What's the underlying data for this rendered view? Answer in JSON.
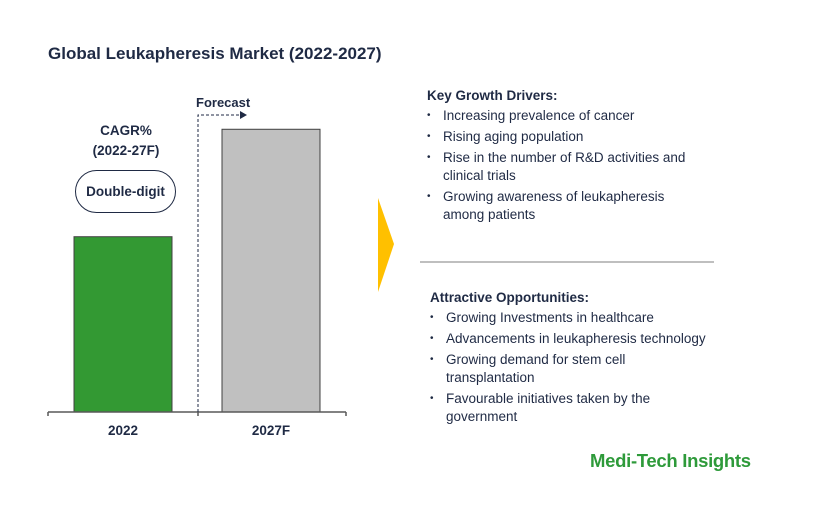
{
  "chart_data": {
    "type": "bar",
    "title": "Global Leukapheresis Market (2022-2027)",
    "categories": [
      "2022",
      "2027F"
    ],
    "values": [
      62,
      100
    ],
    "value_note": "relative index (no values labeled)",
    "colors": [
      "#339933",
      "#c0c0c0"
    ],
    "xlabel": "",
    "ylabel": "",
    "ylim": [
      0,
      110
    ],
    "annotations": {
      "forecast_label": "Forecast",
      "cagr_label_1": "CAGR%",
      "cagr_label_2": "(2022-27F)",
      "cagr_value": "Double-digit"
    }
  },
  "drivers": {
    "heading": "Key Growth Drivers:",
    "items": [
      "Increasing prevalence of cancer",
      "Rising aging population",
      "Rise in the number of R&D activities and clinical trials",
      "Growing awareness of leukapheresis among  patients"
    ]
  },
  "opportunities": {
    "heading": "Attractive Opportunities:",
    "items": [
      "Growing Investments in healthcare",
      "Advancements in leukapheresis technology",
      "Growing demand for stem cell transplantation",
      "Favourable initiatives taken by the government"
    ]
  },
  "logo": "Medi-Tech Insights",
  "colors": {
    "text": "#1f2a44",
    "accent_yellow": "#ffc000",
    "brand_green": "#2e9a3a"
  }
}
